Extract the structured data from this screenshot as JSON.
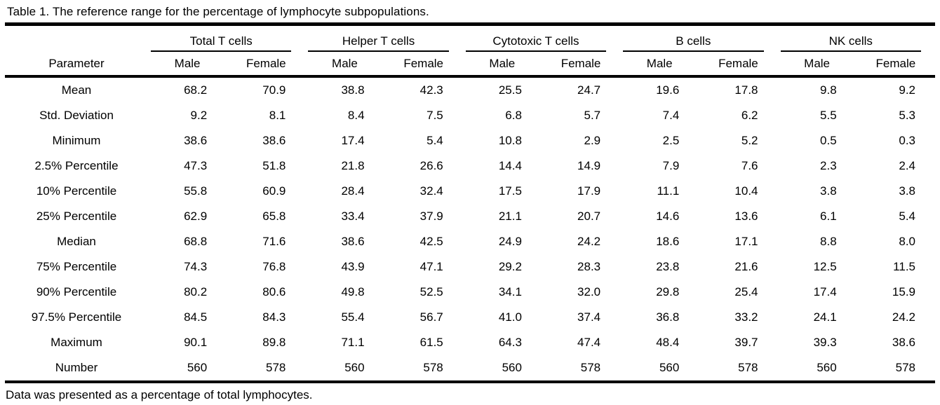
{
  "title": "Table 1. The reference range for the percentage of lymphocyte subpopulations.",
  "footnote": "Data was presented as a percentage of total lymphocytes.",
  "table": {
    "param_header": "Parameter",
    "groups": [
      {
        "label": "Total T cells"
      },
      {
        "label": "Helper T cells"
      },
      {
        "label": "Cytotoxic T cells"
      },
      {
        "label": "B cells"
      },
      {
        "label": "NK cells"
      }
    ],
    "sub_headers": [
      "Male",
      "Female"
    ],
    "rows": [
      {
        "param": "Mean",
        "values": [
          "68.2",
          "70.9",
          "38.8",
          "42.3",
          "25.5",
          "24.7",
          "19.6",
          "17.8",
          "9.8",
          "9.2"
        ]
      },
      {
        "param": "Std. Deviation",
        "values": [
          "9.2",
          "8.1",
          "8.4",
          "7.5",
          "6.8",
          "5.7",
          "7.4",
          "6.2",
          "5.5",
          "5.3"
        ]
      },
      {
        "param": "Minimum",
        "values": [
          "38.6",
          "38.6",
          "17.4",
          "5.4",
          "10.8",
          "2.9",
          "2.5",
          "5.2",
          "0.5",
          "0.3"
        ]
      },
      {
        "param": "2.5% Percentile",
        "values": [
          "47.3",
          "51.8",
          "21.8",
          "26.6",
          "14.4",
          "14.9",
          "7.9",
          "7.6",
          "2.3",
          "2.4"
        ]
      },
      {
        "param": "10% Percentile",
        "values": [
          "55.8",
          "60.9",
          "28.4",
          "32.4",
          "17.5",
          "17.9",
          "11.1",
          "10.4",
          "3.8",
          "3.8"
        ]
      },
      {
        "param": "25% Percentile",
        "values": [
          "62.9",
          "65.8",
          "33.4",
          "37.9",
          "21.1",
          "20.7",
          "14.6",
          "13.6",
          "6.1",
          "5.4"
        ]
      },
      {
        "param": "Median",
        "values": [
          "68.8",
          "71.6",
          "38.6",
          "42.5",
          "24.9",
          "24.2",
          "18.6",
          "17.1",
          "8.8",
          "8.0"
        ]
      },
      {
        "param": "75% Percentile",
        "values": [
          "74.3",
          "76.8",
          "43.9",
          "47.1",
          "29.2",
          "28.3",
          "23.8",
          "21.6",
          "12.5",
          "11.5"
        ]
      },
      {
        "param": "90% Percentile",
        "values": [
          "80.2",
          "80.6",
          "49.8",
          "52.5",
          "34.1",
          "32.0",
          "29.8",
          "25.4",
          "17.4",
          "15.9"
        ]
      },
      {
        "param": "97.5% Percentile",
        "values": [
          "84.5",
          "84.3",
          "55.4",
          "56.7",
          "41.0",
          "37.4",
          "36.8",
          "33.2",
          "24.1",
          "24.2"
        ]
      },
      {
        "param": "Maximum",
        "values": [
          "90.1",
          "89.8",
          "71.1",
          "61.5",
          "64.3",
          "47.4",
          "48.4",
          "39.7",
          "39.3",
          "38.6"
        ]
      },
      {
        "param": "Number",
        "values": [
          "560",
          "578",
          "560",
          "578",
          "560",
          "578",
          "560",
          "578",
          "560",
          "578"
        ]
      }
    ]
  }
}
